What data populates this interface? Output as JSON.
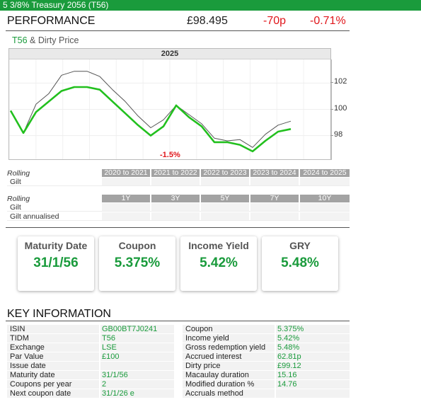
{
  "title_bar": "5 3/8% Treasury 2056 (T56)",
  "performance": {
    "heading": "PERFORMANCE",
    "price": "£98.495",
    "change": "-70p",
    "change_pct": "-0.71%"
  },
  "chart_legend": {
    "tidm": "T56",
    "rest": " & Dirty Price"
  },
  "chart_data": {
    "type": "line",
    "title": "2025",
    "xlabel": "",
    "ylabel": "",
    "ylim": [
      96.2,
      103.8
    ],
    "yticks": [
      98,
      100,
      102
    ],
    "grid": true,
    "x": [
      0,
      1,
      2,
      3,
      4,
      5,
      6,
      7,
      8,
      9,
      10,
      11,
      12,
      13,
      14,
      15,
      16,
      17,
      18,
      19,
      20,
      21,
      22,
      23,
      24,
      25
    ],
    "series": [
      {
        "name": "T56",
        "color": "#22c01e",
        "values": [
          99.9,
          98.2,
          99.8,
          100.6,
          101.4,
          101.7,
          101.7,
          101.5,
          100.6,
          99.7,
          98.8,
          98.0,
          98.7,
          100.3,
          99.4,
          98.7,
          97.5,
          97.5,
          97.3,
          96.8,
          97.6,
          98.3,
          98.5,
          null,
          null,
          null
        ]
      },
      {
        "name": "T56 Dirty Price",
        "color": "#555555",
        "values": [
          99.9,
          98.2,
          100.4,
          101.2,
          102.6,
          102.9,
          102.9,
          102.5,
          101.5,
          100.6,
          99.5,
          98.6,
          99.2,
          100.3,
          99.6,
          98.9,
          97.8,
          97.6,
          97.7,
          97.1,
          98.1,
          98.8,
          99.1,
          null,
          null,
          null
        ]
      }
    ],
    "annotation": "-1.5%"
  },
  "rolling_periods": {
    "label": "Rolling",
    "columns": [
      "2020 to 2021",
      "2021 to 2022",
      "2022 to 2023",
      "2023 to 2024",
      "2024 to 2025"
    ],
    "rows": [
      "Gilt"
    ]
  },
  "rolling_returns": {
    "label": "Rolling",
    "columns": [
      "1Y",
      "3Y",
      "5Y",
      "7Y",
      "10Y"
    ],
    "rows": [
      "Gilt",
      "Gilt annualised"
    ]
  },
  "cards": [
    {
      "title": "Maturity Date",
      "value": "31/1/56"
    },
    {
      "title": "Coupon",
      "value": "5.375%"
    },
    {
      "title": "Income Yield",
      "value": "5.42%"
    },
    {
      "title": "GRY",
      "value": "5.48%"
    }
  ],
  "key_information": {
    "heading": "KEY INFORMATION",
    "left": [
      {
        "key": "ISIN",
        "value": "GB00BT7J0241"
      },
      {
        "key": "TIDM",
        "value": "T56"
      },
      {
        "key": "Exchange",
        "value": "LSE"
      },
      {
        "key": "Par Value",
        "value": "£100"
      },
      {
        "key": "Issue date",
        "value": ""
      },
      {
        "key": "Maturity date",
        "value": "31/1/56"
      },
      {
        "key": "Coupons per year",
        "value": "2"
      },
      {
        "key": "Next coupon date",
        "value": "31/1/26 e"
      }
    ],
    "right": [
      {
        "key": "Coupon",
        "value": "5.375%"
      },
      {
        "key": "Income yield",
        "value": "5.42%"
      },
      {
        "key": "Gross redemption yield",
        "value": "5.48%"
      },
      {
        "key": "Accrued interest",
        "value": "62.81p"
      },
      {
        "key": "Dirty price",
        "value": "£99.12"
      },
      {
        "key": "Macaulay duration",
        "value": "15.16"
      },
      {
        "key": "Modified duration %",
        "value": "14.76"
      },
      {
        "key": "Accruals method",
        "value": ""
      }
    ]
  }
}
